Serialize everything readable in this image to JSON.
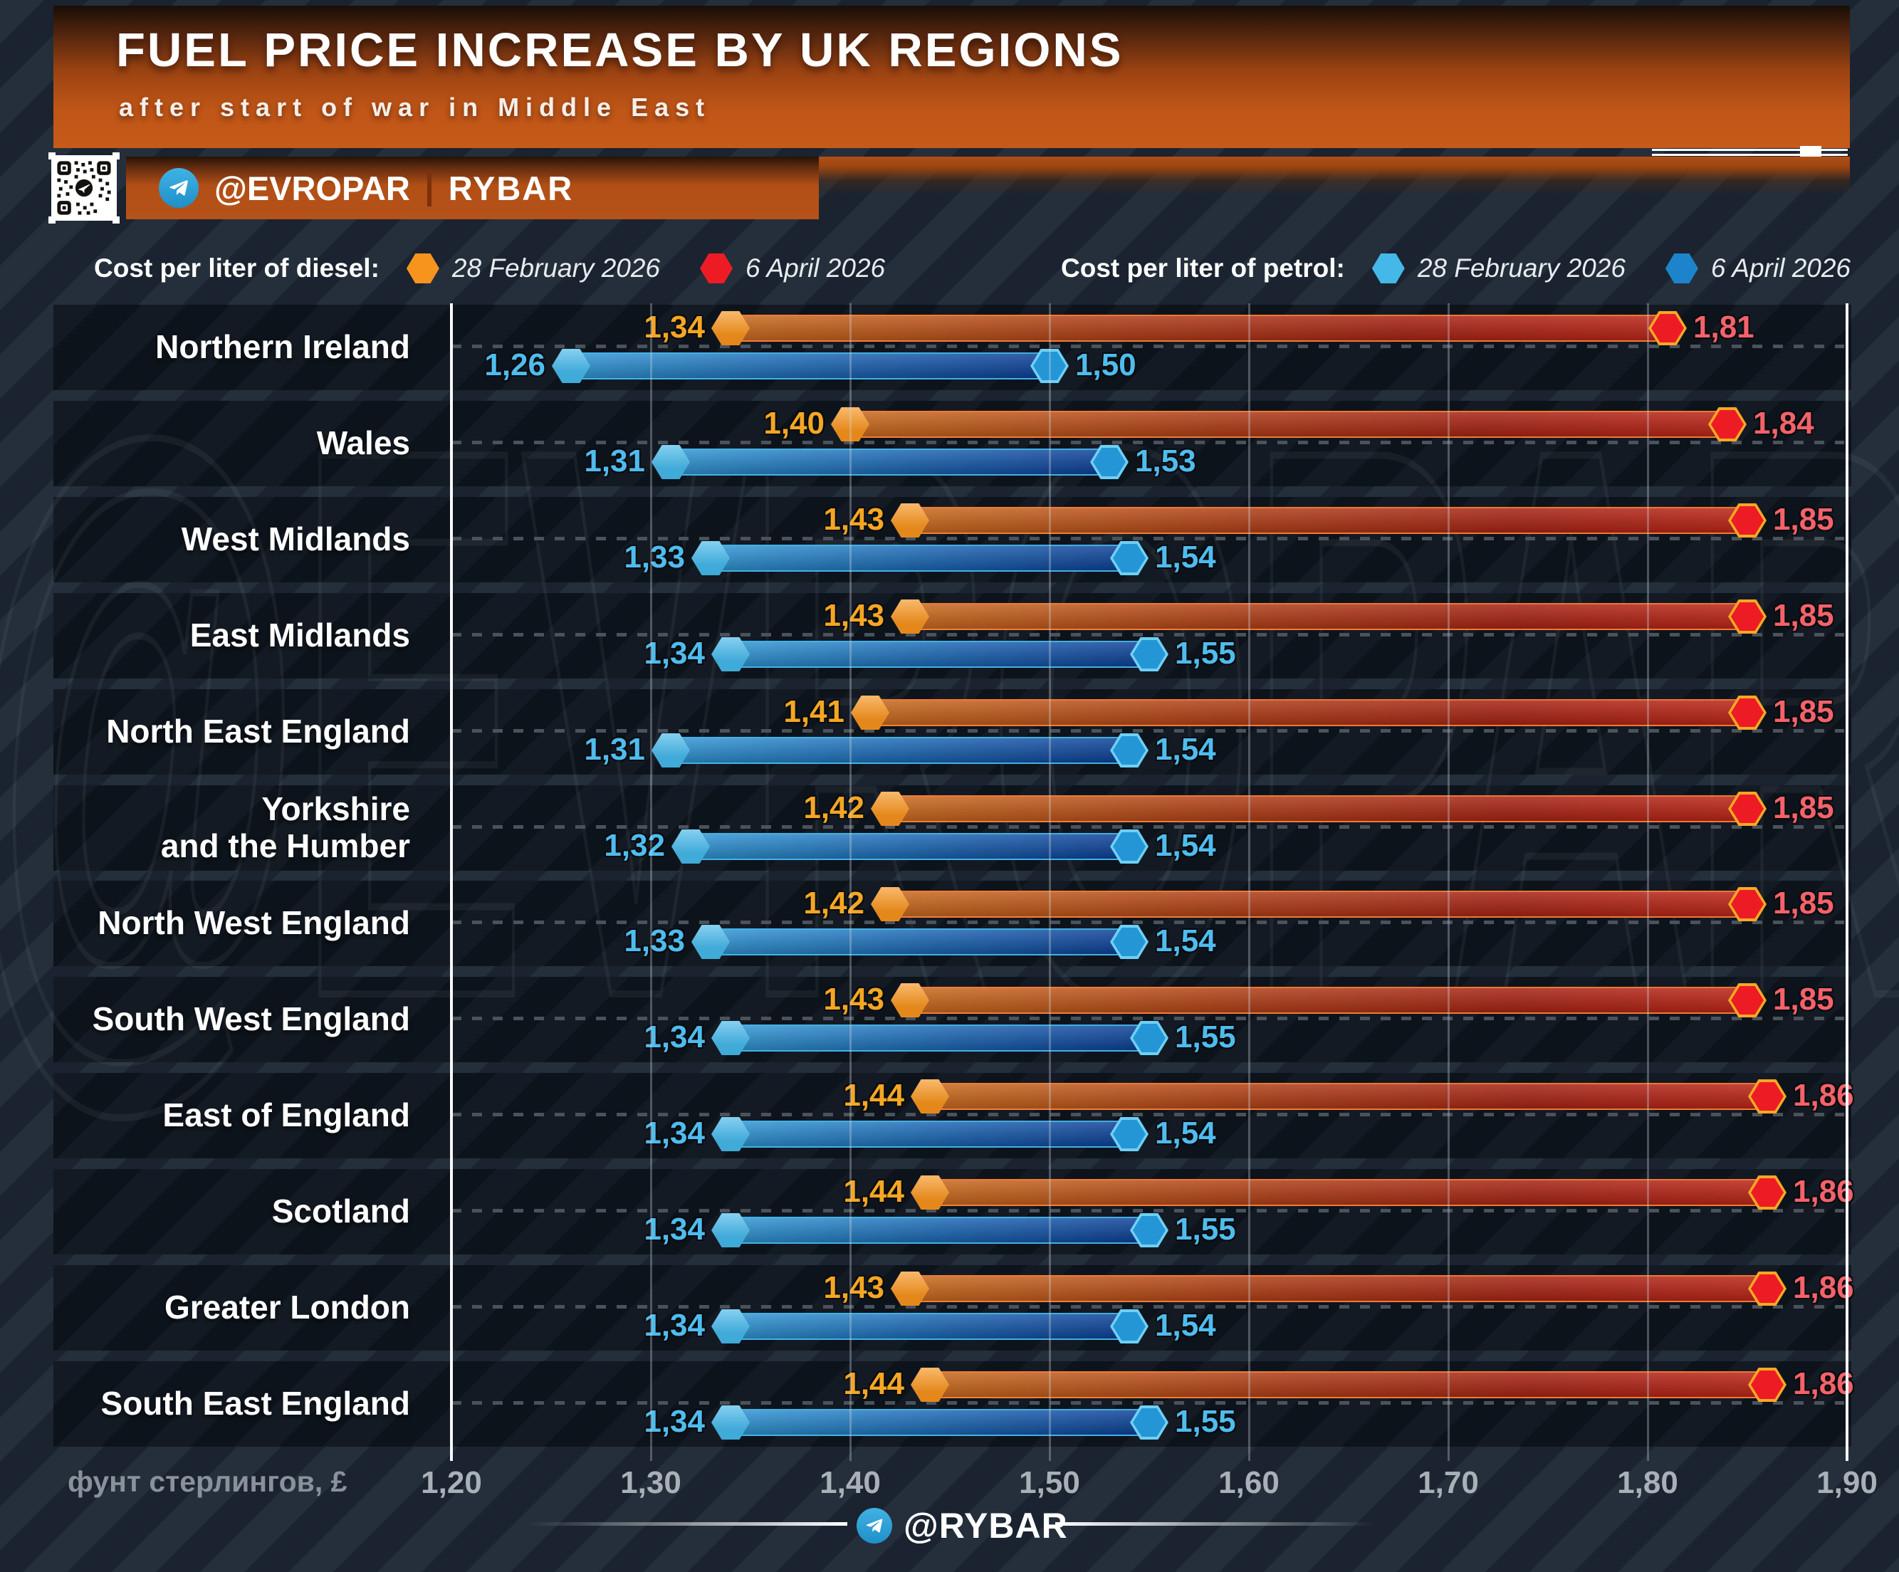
{
  "header": {
    "title": "FUEL PRICE INCREASE BY UK REGIONS",
    "subtitle": "after start of war in Middle East"
  },
  "branding": {
    "channel": "@EVROPAR",
    "partner": "RYBAR",
    "footer_channel": "@RYBAR",
    "watermark": "@EVROPAR"
  },
  "legend": {
    "diesel_label": "Cost per liter of diesel:",
    "petrol_label": "Cost per liter of petrol:",
    "date_before": "28 February 2026",
    "date_after": "6 April 2026"
  },
  "axis": {
    "label": "фунт стерлингов, £",
    "ticks": [
      "1,20",
      "1,30",
      "1,40",
      "1,50",
      "1,60",
      "1,70",
      "1,80",
      "1,90"
    ],
    "min": 1.2,
    "max": 1.9
  },
  "colors": {
    "diesel_before_marker": "#f7941e",
    "diesel_after_marker": "#ed1c24",
    "diesel_after_marker_border": "#f9a825",
    "petrol_before_marker": "#45b8ea",
    "petrol_after_marker": "#2496d6",
    "petrol_after_marker_border": "#6fd0f5",
    "diesel_value_before": "#f5a623",
    "diesel_value_after": "#f4626a",
    "petrol_value": "#4fbcee",
    "header_orange": "#bf5517",
    "banner_orange": "#b24f16"
  },
  "region_label_lines": {
    "Yorkshire and the Humber": "Yorkshire\nand the Humber"
  },
  "chart_data": {
    "type": "bar",
    "title": "FUEL PRICE INCREASE BY UK REGIONS",
    "subtitle": "after start of war in Middle East",
    "xlabel": "фунт стерлингов, £",
    "xlim": [
      1.2,
      1.9
    ],
    "grid": true,
    "legend_position": "top",
    "categories": [
      "Northern Ireland",
      "Wales",
      "West Midlands",
      "East Midlands",
      "North East England",
      "Yorkshire and the Humber",
      "North West England",
      "South West England",
      "East of England",
      "Scotland",
      "Greater London",
      "South East England"
    ],
    "series": [
      {
        "name": "Diesel — 28 February 2026",
        "values": [
          1.34,
          1.4,
          1.43,
          1.43,
          1.41,
          1.42,
          1.42,
          1.43,
          1.44,
          1.44,
          1.43,
          1.44
        ]
      },
      {
        "name": "Diesel — 6 April 2026",
        "values": [
          1.81,
          1.84,
          1.85,
          1.85,
          1.85,
          1.85,
          1.85,
          1.85,
          1.86,
          1.86,
          1.86,
          1.86
        ]
      },
      {
        "name": "Petrol — 28 February 2026",
        "values": [
          1.26,
          1.31,
          1.33,
          1.34,
          1.31,
          1.32,
          1.33,
          1.34,
          1.34,
          1.34,
          1.34,
          1.34
        ]
      },
      {
        "name": "Petrol — 6 April 2026",
        "values": [
          1.5,
          1.53,
          1.54,
          1.55,
          1.54,
          1.54,
          1.54,
          1.55,
          1.54,
          1.55,
          1.54,
          1.55
        ]
      }
    ]
  }
}
